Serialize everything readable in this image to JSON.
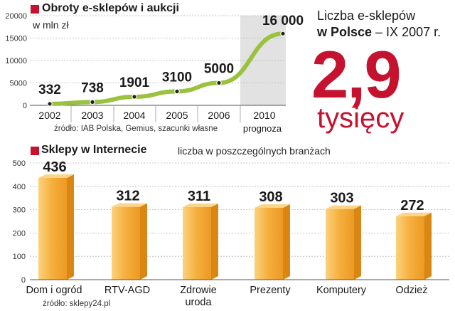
{
  "colors": {
    "accent_red": "#c4122f",
    "line_green": "#9ac23c",
    "bar_orange": "#f3a838",
    "panel_gray": "#e2e2e2"
  },
  "headline": {
    "line1": "Liczba e-sklepów",
    "line2_bold": "w Polsce",
    "line2_rest": " – IX 2007 r.",
    "value": "2,9",
    "unit": "tysięcy"
  },
  "chart_data": [
    {
      "type": "line",
      "title": "Obroty e-sklepów i aukcji",
      "subtitle": "w mln zł",
      "source": "źródło: IAB Polska, Gemius, szacunki własne",
      "x": [
        "2002",
        "2003",
        "2004",
        "2005",
        "2006",
        "2010"
      ],
      "x_sublabels": [
        "",
        "",
        "",
        "",
        "",
        "prognoza"
      ],
      "values": [
        332,
        738,
        1901,
        3100,
        5000,
        16000
      ],
      "data_labels": [
        "332",
        "738",
        "1901",
        "3100",
        "5000",
        "16 000"
      ],
      "ylim": [
        0,
        20000
      ],
      "yticks": [
        0,
        5000,
        10000,
        15000,
        20000
      ],
      "grid": true
    },
    {
      "type": "bar",
      "title": "Sklepy w Internecie",
      "subtitle": "liczba w poszczególnych branżach",
      "source": "źródło: sklepy24.pl",
      "categories": [
        "Dom i ogród",
        "RTV-AGD",
        "Zdrowie uroda",
        "Prezenty",
        "Komputery",
        "Odzież"
      ],
      "category_lines": [
        [
          "Dom i ogród"
        ],
        [
          "RTV-AGD"
        ],
        [
          "Zdrowie",
          "uroda"
        ],
        [
          "Prezenty"
        ],
        [
          "Komputery"
        ],
        [
          "Odzież"
        ]
      ],
      "values": [
        436,
        312,
        311,
        308,
        303,
        272
      ],
      "data_labels": [
        "436",
        "312",
        "311",
        "308",
        "303",
        "272"
      ],
      "ylim": [
        0,
        500
      ],
      "yticks": [
        0,
        100,
        200,
        300,
        400,
        500
      ],
      "grid": true
    }
  ]
}
